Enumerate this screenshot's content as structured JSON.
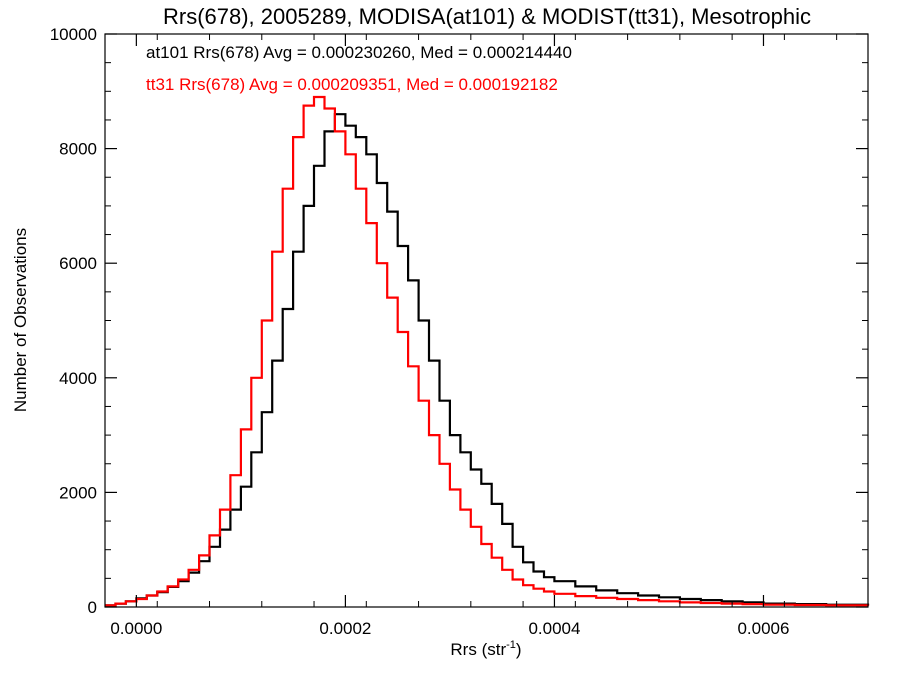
{
  "chart_data": {
    "type": "line",
    "title": "Rrs(678), 2005289, MODISA(at101) & MODIST(tt31), Mesotrophic",
    "xlabel": "Rrs (str",
    "xlabel_sup": "-1",
    "xlabel_end": ")",
    "ylabel": "Number of Observations",
    "xlim": [
      -3e-05,
      0.0007
    ],
    "ylim": [
      0,
      10000
    ],
    "x_ticks": [
      0.0,
      0.0002,
      0.0004,
      0.0006
    ],
    "x_tick_labels": [
      "0.0000",
      "0.0002",
      "0.0004",
      "0.0006"
    ],
    "y_ticks": [
      0,
      2000,
      4000,
      6000,
      8000,
      10000
    ],
    "y_tick_labels": [
      "0",
      "2000",
      "4000",
      "6000",
      "8000",
      "10000"
    ],
    "grid": false,
    "annotations": [
      {
        "text": "at101 Rrs(678) Avg = 0.000230260, Med = 0.000214440",
        "color": "#000000"
      },
      {
        "text": "tt31 Rrs(678) Avg = 0.000209351, Med = 0.000192182",
        "color": "#ff0000"
      }
    ],
    "series": [
      {
        "color": "#000000",
        "x": [
          -3e-05,
          -2e-05,
          -1e-05,
          0.0,
          1e-05,
          2e-05,
          3e-05,
          4e-05,
          5e-05,
          6e-05,
          7e-05,
          8e-05,
          9e-05,
          0.0001,
          0.00011,
          0.00012,
          0.00013,
          0.00014,
          0.00015,
          0.00016,
          0.00017,
          0.00018,
          0.00019,
          0.0002,
          0.00021,
          0.00022,
          0.00023,
          0.00024,
          0.00025,
          0.00026,
          0.00027,
          0.00028,
          0.00029,
          0.0003,
          0.00031,
          0.00032,
          0.00033,
          0.00034,
          0.00035,
          0.00036,
          0.00037,
          0.00038,
          0.00039,
          0.0004,
          0.00042,
          0.00044,
          0.00046,
          0.00048,
          0.0005,
          0.00052,
          0.00054,
          0.00056,
          0.00058,
          0.0006,
          0.00063,
          0.00066,
          0.0007
        ],
        "values": [
          30,
          60,
          100,
          150,
          200,
          260,
          350,
          450,
          600,
          800,
          1050,
          1350,
          1700,
          2100,
          2700,
          3400,
          4300,
          5200,
          6200,
          7000,
          7700,
          8300,
          8600,
          8400,
          8200,
          7900,
          7400,
          6900,
          6300,
          5700,
          5000,
          4300,
          3600,
          3000,
          2700,
          2400,
          2150,
          1800,
          1450,
          1050,
          780,
          620,
          520,
          450,
          360,
          290,
          240,
          200,
          170,
          140,
          120,
          100,
          80,
          60,
          50,
          40,
          30
        ]
      },
      {
        "color": "#ff0000",
        "x": [
          -3e-05,
          -2e-05,
          -1e-05,
          0.0,
          1e-05,
          2e-05,
          3e-05,
          4e-05,
          5e-05,
          6e-05,
          7e-05,
          8e-05,
          9e-05,
          0.0001,
          0.00011,
          0.00012,
          0.00013,
          0.00014,
          0.00015,
          0.00016,
          0.00017,
          0.00018,
          0.00019,
          0.0002,
          0.00021,
          0.00022,
          0.00023,
          0.00024,
          0.00025,
          0.00026,
          0.00027,
          0.00028,
          0.00029,
          0.0003,
          0.00031,
          0.00032,
          0.00033,
          0.00034,
          0.00035,
          0.00036,
          0.00037,
          0.00038,
          0.00039,
          0.0004,
          0.00042,
          0.00044,
          0.00046,
          0.00048,
          0.0005,
          0.00052,
          0.00054,
          0.00056,
          0.00058,
          0.0006,
          0.00063,
          0.00066,
          0.0007
        ],
        "values": [
          30,
          60,
          100,
          140,
          200,
          270,
          360,
          480,
          650,
          900,
          1250,
          1700,
          2300,
          3100,
          4000,
          5000,
          6200,
          7300,
          8200,
          8750,
          8900,
          8700,
          8300,
          7900,
          7300,
          6700,
          6000,
          5400,
          4800,
          4200,
          3600,
          3000,
          2500,
          2050,
          1700,
          1400,
          1100,
          860,
          650,
          480,
          380,
          320,
          270,
          230,
          190,
          160,
          140,
          120,
          100,
          80,
          70,
          60,
          50,
          40,
          35,
          30,
          20
        ]
      }
    ]
  }
}
